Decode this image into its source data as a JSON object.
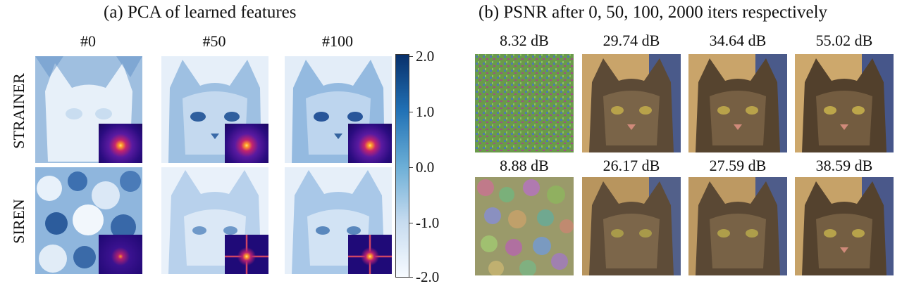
{
  "panel_a": {
    "title": "(a) PCA of learned features",
    "columns": [
      "#0",
      "#50",
      "#100"
    ],
    "rows": [
      "STRAINER",
      "SIREN"
    ],
    "colorbar_ticks": [
      "2.0",
      "1.0",
      "0.0",
      "-1.0",
      "-2.0"
    ],
    "colors": {
      "dark": "#08306b",
      "mid": "#6baed6",
      "light": "#f7fbff"
    }
  },
  "panel_b": {
    "title": "(b) PSNR after 0, 50, 100, 2000 iters respectively",
    "row1_psnr": [
      "8.32 dB",
      "29.74 dB",
      "34.64 dB",
      "55.02 dB"
    ],
    "row2_psnr": [
      "8.88 dB",
      "26.17 dB",
      "27.59 dB",
      "38.59 dB"
    ]
  }
}
